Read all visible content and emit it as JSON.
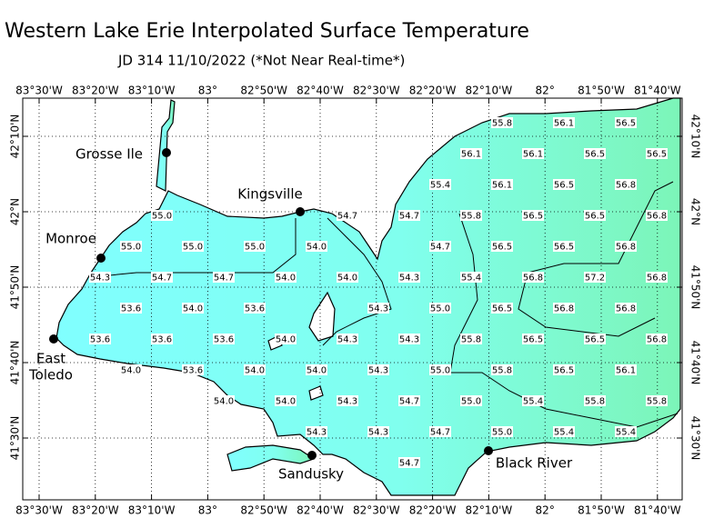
{
  "title": "Western Lake Erie Interpolated Surface Temperature",
  "subtitle": "JD 314 11/10/2022 (*Not Near Real-time*)",
  "lon_labels": [
    "83°30'W",
    "83°20'W",
    "83°10'W",
    "83°",
    "82°50'W",
    "82°40'W",
    "82°30'W",
    "82°20'W",
    "82°10'W",
    "82°",
    "81°50'W",
    "81°40'W"
  ],
  "lat_labels": [
    "42°10'N",
    "42°N",
    "41°50'N",
    "41°40'N",
    "41°30'N"
  ],
  "cities": [
    {
      "lines": [
        "Grosse Ile"
      ]
    },
    {
      "lines": [
        "Kingsville"
      ]
    },
    {
      "lines": [
        "Monroe"
      ]
    },
    {
      "lines": [
        "East",
        "Toledo"
      ]
    },
    {
      "lines": [
        "Sandusky"
      ]
    },
    {
      "lines": [
        "Black River"
      ]
    }
  ],
  "temperatures": [
    "55.8",
    "56.1",
    "56.5",
    "56.1",
    "56.1",
    "56.5",
    "56.5",
    "55.4",
    "56.1",
    "56.5",
    "56.8",
    "55.0",
    "54.7",
    "54.7",
    "55.8",
    "56.5",
    "56.5",
    "56.8",
    "55.0",
    "55.0",
    "55.0",
    "54.0",
    "54.7",
    "56.5",
    "56.5",
    "56.8",
    "54.3",
    "54.7",
    "54.7",
    "54.0",
    "54.0",
    "54.3",
    "55.4",
    "56.8",
    "57.2",
    "56.8",
    "53.6",
    "54.0",
    "53.6",
    "54.3",
    "55.0",
    "56.5",
    "56.8",
    "56.8",
    "53.6",
    "53.6",
    "53.6",
    "54.0",
    "54.3",
    "54.3",
    "55.8",
    "56.5",
    "56.5",
    "56.8",
    "54.0",
    "53.6",
    "54.0",
    "54.0",
    "54.3",
    "55.0",
    "55.8",
    "56.5",
    "56.1",
    "54.0",
    "54.0",
    "54.3",
    "54.7",
    "55.0",
    "55.4",
    "55.8",
    "55.8",
    "54.3",
    "54.3",
    "54.7",
    "55.0",
    "55.4",
    "55.4",
    "54.7"
  ]
}
